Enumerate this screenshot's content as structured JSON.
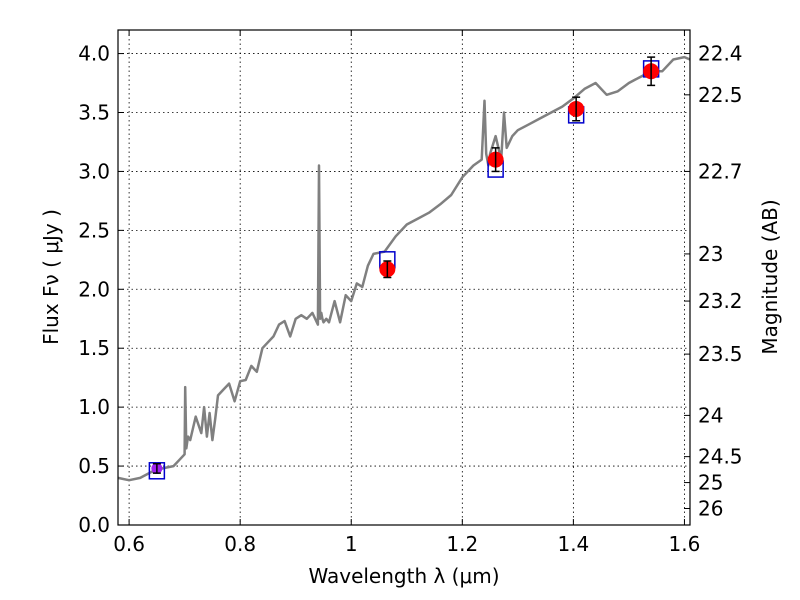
{
  "chart_data": {
    "type": "line",
    "title": "",
    "xlabel": "Wavelength  λ (μm)",
    "ylabel": "Flux  Fν  ( μJy )",
    "ylabel_right": "Magnitude (AB)",
    "xlim": [
      0.58,
      1.61
    ],
    "ylim": [
      0.0,
      4.2
    ],
    "grid": true,
    "x_ticks": [
      0.6,
      0.8,
      1.0,
      1.2,
      1.4,
      1.6
    ],
    "x_tick_labels": [
      "0.6",
      "0.8",
      "1",
      "1.2",
      "1.4",
      "1.6"
    ],
    "y_ticks": [
      0.0,
      0.5,
      1.0,
      1.5,
      2.0,
      2.5,
      3.0,
      3.5,
      4.0
    ],
    "y_tick_labels": [
      "0.0",
      "0.5",
      "1.0",
      "1.5",
      "2.0",
      "2.5",
      "3.0",
      "3.5",
      "4.0"
    ],
    "right_ticks": [
      {
        "label": "22.4",
        "flux": 4.0
      },
      {
        "label": "22.5",
        "flux": 3.65
      },
      {
        "label": "22.7",
        "flux": 3.0
      },
      {
        "label": "23",
        "flux": 2.3
      },
      {
        "label": "23.2",
        "flux": 1.9
      },
      {
        "label": "23.5",
        "flux": 1.45
      },
      {
        "label": "24",
        "flux": 0.93
      },
      {
        "label": "24.5",
        "flux": 0.58
      },
      {
        "label": "25",
        "flux": 0.36
      },
      {
        "label": "26",
        "flux": 0.14
      }
    ],
    "series": [
      {
        "name": "spectrum",
        "kind": "line",
        "color": "#808080",
        "x": [
          0.58,
          0.6,
          0.62,
          0.64,
          0.66,
          0.68,
          0.69,
          0.7,
          0.701,
          0.703,
          0.706,
          0.71,
          0.72,
          0.73,
          0.735,
          0.74,
          0.745,
          0.75,
          0.755,
          0.76,
          0.77,
          0.78,
          0.79,
          0.8,
          0.81,
          0.82,
          0.83,
          0.84,
          0.85,
          0.86,
          0.87,
          0.88,
          0.89,
          0.9,
          0.91,
          0.92,
          0.93,
          0.94,
          0.942,
          0.944,
          0.946,
          0.948,
          0.95,
          0.955,
          0.96,
          0.97,
          0.98,
          0.99,
          1.0,
          1.01,
          1.02,
          1.03,
          1.04,
          1.06,
          1.08,
          1.1,
          1.12,
          1.14,
          1.16,
          1.18,
          1.2,
          1.22,
          1.235,
          1.24,
          1.243,
          1.247,
          1.25,
          1.26,
          1.27,
          1.275,
          1.28,
          1.29,
          1.3,
          1.32,
          1.34,
          1.36,
          1.38,
          1.4,
          1.42,
          1.44,
          1.46,
          1.48,
          1.5,
          1.52,
          1.54,
          1.56,
          1.58,
          1.6,
          1.61
        ],
        "y": [
          0.4,
          0.38,
          0.4,
          0.45,
          0.48,
          0.5,
          0.55,
          0.6,
          1.17,
          0.65,
          0.75,
          0.72,
          0.92,
          0.78,
          1.0,
          0.75,
          0.95,
          0.72,
          0.9,
          1.1,
          1.15,
          1.2,
          1.05,
          1.22,
          1.23,
          1.35,
          1.3,
          1.5,
          1.55,
          1.6,
          1.7,
          1.73,
          1.6,
          1.75,
          1.78,
          1.75,
          1.8,
          1.7,
          3.05,
          1.75,
          1.8,
          1.75,
          1.72,
          1.75,
          1.72,
          1.9,
          1.72,
          1.95,
          1.9,
          2.05,
          2.02,
          2.2,
          2.3,
          2.32,
          2.45,
          2.55,
          2.6,
          2.65,
          2.72,
          2.8,
          2.95,
          3.05,
          3.1,
          3.6,
          3.15,
          3.05,
          3.15,
          3.3,
          3.1,
          3.5,
          3.2,
          3.3,
          3.35,
          3.4,
          3.45,
          3.5,
          3.55,
          3.62,
          3.7,
          3.75,
          3.65,
          3.68,
          3.75,
          3.8,
          3.85,
          3.85,
          3.95,
          3.97,
          3.95
        ]
      },
      {
        "name": "photometry",
        "kind": "points",
        "color": "#ff0000",
        "x": [
          0.65,
          1.065,
          1.26,
          1.405,
          1.54
        ],
        "y": [
          0.48,
          2.17,
          3.1,
          3.53,
          3.85
        ],
        "yerr": [
          0.04,
          0.07,
          0.1,
          0.1,
          0.12
        ]
      },
      {
        "name": "model photometry",
        "kind": "open squares",
        "color": "#0000cc",
        "x": [
          0.65,
          1.065,
          1.26,
          1.405,
          1.54
        ],
        "y": [
          0.46,
          2.25,
          3.02,
          3.48,
          3.87
        ]
      }
    ],
    "highlight_point": {
      "x": 0.65,
      "y": 0.48,
      "color": "#a020f0"
    }
  }
}
